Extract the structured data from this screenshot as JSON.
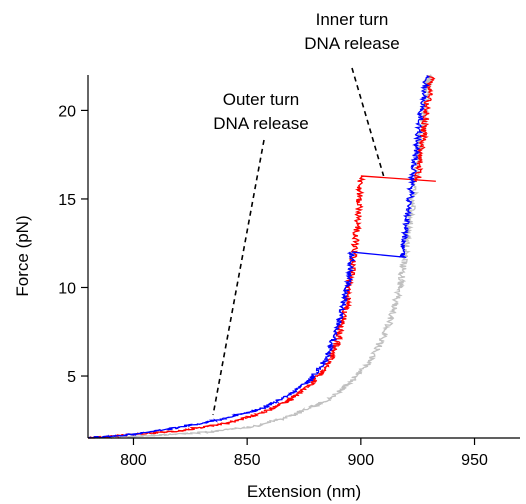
{
  "chart_data": {
    "type": "line",
    "xlabel": "Extension (nm)",
    "ylabel": "Force (pN)",
    "xlim": [
      780,
      970
    ],
    "ylim": [
      1.5,
      22
    ],
    "xticks": [
      800,
      850,
      900,
      950
    ],
    "yticks": [
      5,
      10,
      15,
      20
    ],
    "grid": false,
    "legend": "none",
    "annotations": [
      {
        "lines": [
          "Outer turn",
          "DNA release"
        ],
        "target": [
          835,
          2.8
        ]
      },
      {
        "lines": [
          "Inner turn",
          "DNA release"
        ],
        "target": [
          910,
          16.3
        ]
      }
    ],
    "series": [
      {
        "color": "#c0c0c0",
        "points": [
          [
            780,
            1.5
          ],
          [
            800,
            1.6
          ],
          [
            830,
            1.8
          ],
          [
            855,
            2.2
          ],
          [
            870,
            2.8
          ],
          [
            885,
            3.6
          ],
          [
            897,
            4.8
          ],
          [
            905,
            6.0
          ],
          [
            912,
            7.8
          ],
          [
            917,
            9.8
          ],
          [
            919,
            11.5
          ],
          [
            921,
            13.2
          ],
          [
            923,
            15.0
          ],
          [
            925,
            17.0
          ],
          [
            927,
            19.0
          ],
          [
            929,
            21.0
          ],
          [
            930,
            22.0
          ]
        ],
        "noise": 3.5
      },
      {
        "color": "#ff0000",
        "points": [
          [
            780,
            1.5
          ],
          [
            800,
            1.7
          ],
          [
            820,
            1.9
          ],
          [
            840,
            2.3
          ],
          [
            856,
            2.9
          ],
          [
            868,
            3.6
          ],
          [
            878,
            4.5
          ],
          [
            886,
            5.8
          ],
          [
            890,
            7.0
          ],
          [
            893,
            8.5
          ],
          [
            895,
            10.0
          ],
          [
            897,
            12.0
          ],
          [
            899,
            14.0
          ],
          [
            900,
            16.3
          ]
        ],
        "noise": 3.5,
        "jump": [
          [
            900,
            16.3
          ],
          [
            933,
            16.0
          ]
        ],
        "after": [
          [
            925,
            16.0
          ],
          [
            927,
            18.0
          ],
          [
            929,
            20.0
          ],
          [
            931,
            22.0
          ]
        ]
      },
      {
        "color": "#0000ff",
        "points": [
          [
            780,
            1.5
          ],
          [
            800,
            1.7
          ],
          [
            820,
            2.1
          ],
          [
            840,
            2.6
          ],
          [
            855,
            3.1
          ],
          [
            868,
            3.9
          ],
          [
            878,
            4.8
          ],
          [
            885,
            6.0
          ],
          [
            889,
            7.5
          ],
          [
            892,
            9.0
          ],
          [
            895,
            10.5
          ],
          [
            896,
            12.0
          ]
        ],
        "noise": 3.0,
        "jump": [
          [
            896,
            12.0
          ],
          [
            920,
            11.7
          ]
        ],
        "after": [
          [
            918,
            11.7
          ],
          [
            920,
            13.5
          ],
          [
            922,
            15.5
          ],
          [
            924,
            17.5
          ],
          [
            926,
            19.5
          ],
          [
            929,
            22.0
          ]
        ]
      }
    ]
  }
}
